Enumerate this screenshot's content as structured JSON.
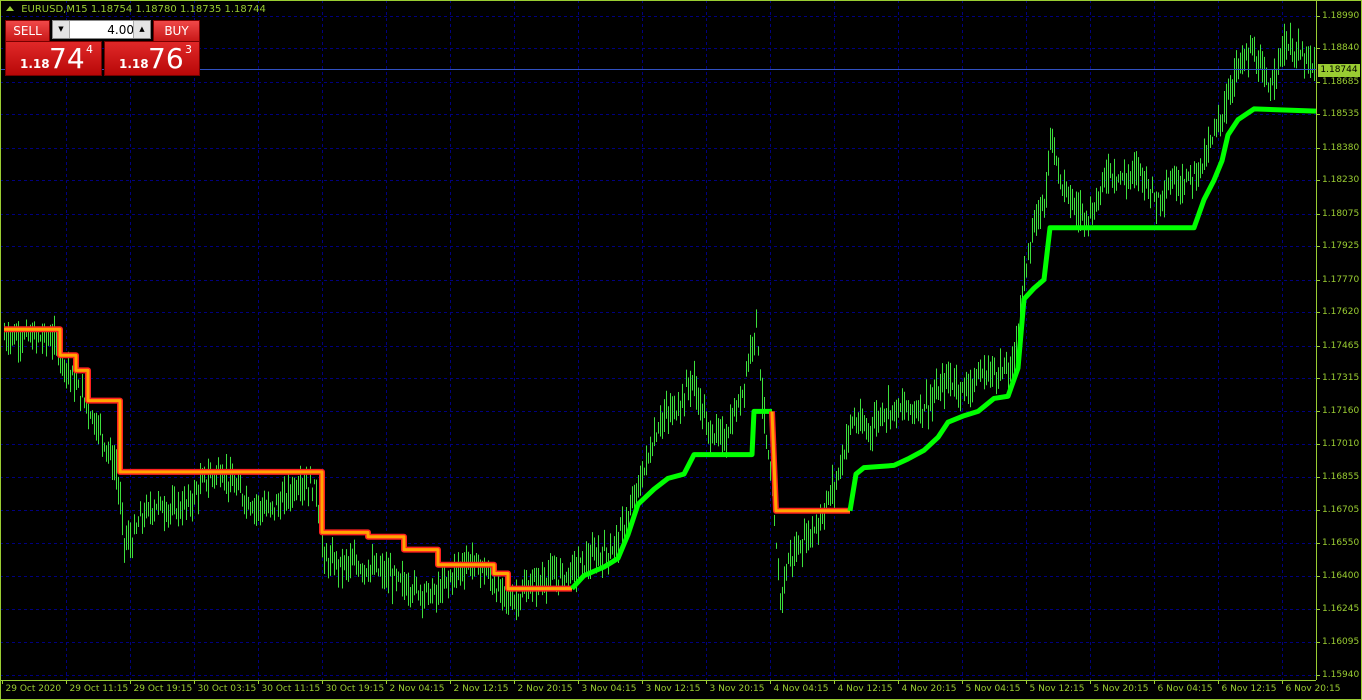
{
  "header": {
    "symbol": "EURUSD,M15",
    "open": "1.18754",
    "high": "1.18780",
    "low": "1.18735",
    "close": "1.18744"
  },
  "trade_panel": {
    "sell_label": "SELL",
    "buy_label": "BUY",
    "lot_value": "4.00",
    "sell_price": {
      "prefix": "1.18",
      "big": "74",
      "sup": "4"
    },
    "buy_price": {
      "prefix": "1.18",
      "big": "76",
      "sup": "3"
    },
    "lot_down_icon": "triangle-down",
    "lot_up_icon": "triangle-up"
  },
  "current_price": "1.18744",
  "colors": {
    "background": "#000000",
    "axis": "#9acd32",
    "grid": "#000080",
    "bars": "#3ce03c",
    "trend_up": "#00ff00",
    "trend_down_outer": "#ff2020",
    "trend_down_inner": "#ffa500",
    "bid_line": "#3050c0"
  },
  "chart_data": {
    "type": "bar",
    "symbol": "EURUSD",
    "timeframe": "M15",
    "ylim": [
      1.1594,
      1.1899
    ],
    "y_ticks": [
      "1.18990",
      "1.18840",
      "1.18685",
      "1.18535",
      "1.18380",
      "1.18230",
      "1.18075",
      "1.17925",
      "1.17770",
      "1.17620",
      "1.17465",
      "1.17315",
      "1.17160",
      "1.17010",
      "1.16855",
      "1.16705",
      "1.16550",
      "1.16400",
      "1.16245",
      "1.16095",
      "1.15940"
    ],
    "x_ticks": [
      "29 Oct 2020",
      "29 Oct 11:15",
      "29 Oct 19:15",
      "30 Oct 03:15",
      "30 Oct 11:15",
      "30 Oct 19:15",
      "2 Nov 04:15",
      "2 Nov 12:15",
      "2 Nov 20:15",
      "3 Nov 04:15",
      "3 Nov 12:15",
      "3 Nov 20:15",
      "4 Nov 04:15",
      "4 Nov 12:15",
      "4 Nov 20:15",
      "5 Nov 04:15",
      "5 Nov 12:15",
      "5 Nov 20:15",
      "6 Nov 04:15",
      "6 Nov 12:15",
      "6 Nov 20:15"
    ],
    "grid": true,
    "price_path": [
      [
        0,
        1.1751
      ],
      [
        8,
        1.1751
      ],
      [
        16,
        1.175
      ],
      [
        24,
        1.175
      ],
      [
        32,
        1.1735
      ],
      [
        40,
        1.1721
      ],
      [
        48,
        1.1707
      ],
      [
        56,
        1.1689
      ],
      [
        60,
        1.1656
      ],
      [
        64,
        1.1656
      ],
      [
        68,
        1.1666
      ],
      [
        76,
        1.1673
      ],
      [
        84,
        1.167
      ],
      [
        92,
        1.1673
      ],
      [
        100,
        1.1684
      ],
      [
        108,
        1.1689
      ],
      [
        116,
        1.168
      ],
      [
        124,
        1.1673
      ],
      [
        132,
        1.167
      ],
      [
        140,
        1.1675
      ],
      [
        148,
        1.1684
      ],
      [
        156,
        1.168
      ],
      [
        160,
        1.1647
      ],
      [
        168,
        1.1645
      ],
      [
        176,
        1.1645
      ],
      [
        184,
        1.1643
      ],
      [
        192,
        1.164
      ],
      [
        200,
        1.1636
      ],
      [
        208,
        1.1633
      ],
      [
        216,
        1.1631
      ],
      [
        224,
        1.164
      ],
      [
        232,
        1.1647
      ],
      [
        240,
        1.1643
      ],
      [
        248,
        1.1631
      ],
      [
        256,
        1.1629
      ],
      [
        264,
        1.1636
      ],
      [
        272,
        1.1639
      ],
      [
        280,
        1.164
      ],
      [
        288,
        1.1645
      ],
      [
        296,
        1.1649
      ],
      [
        304,
        1.1652
      ],
      [
        312,
        1.1666
      ],
      [
        320,
        1.1689
      ],
      [
        328,
        1.1712
      ],
      [
        336,
        1.1717
      ],
      [
        344,
        1.1731
      ],
      [
        352,
        1.1707
      ],
      [
        360,
        1.1703
      ],
      [
        368,
        1.1721
      ],
      [
        376,
        1.1758
      ],
      [
        380,
        1.1712
      ],
      [
        384,
        1.1675
      ],
      [
        388,
        1.1629
      ],
      [
        392,
        1.1647
      ],
      [
        400,
        1.1656
      ],
      [
        408,
        1.1666
      ],
      [
        416,
        1.1684
      ],
      [
        424,
        1.1712
      ],
      [
        432,
        1.1707
      ],
      [
        440,
        1.1717
      ],
      [
        448,
        1.1717
      ],
      [
        456,
        1.1717
      ],
      [
        464,
        1.1721
      ],
      [
        472,
        1.1731
      ],
      [
        480,
        1.1726
      ],
      [
        488,
        1.1733
      ],
      [
        496,
        1.1735
      ],
      [
        504,
        1.1735
      ],
      [
        512,
        1.1791
      ],
      [
        520,
        1.1814
      ],
      [
        524,
        1.1846
      ],
      [
        528,
        1.1823
      ],
      [
        536,
        1.1809
      ],
      [
        544,
        1.1807
      ],
      [
        552,
        1.1828
      ],
      [
        560,
        1.1823
      ],
      [
        568,
        1.1828
      ],
      [
        576,
        1.1814
      ],
      [
        584,
        1.1823
      ],
      [
        592,
        1.1823
      ],
      [
        600,
        1.1832
      ],
      [
        608,
        1.1851
      ],
      [
        616,
        1.1874
      ],
      [
        624,
        1.1883
      ],
      [
        632,
        1.1865
      ],
      [
        640,
        1.1886
      ],
      [
        648,
        1.1881
      ],
      [
        655,
        1.1874
      ]
    ],
    "trend_line": [
      {
        "trend": "down",
        "points": [
          [
            0,
            1.1754
          ],
          [
            28,
            1.1754
          ],
          [
            28,
            1.1742
          ],
          [
            36,
            1.1742
          ],
          [
            36,
            1.1735
          ],
          [
            42,
            1.1735
          ],
          [
            42,
            1.1721
          ],
          [
            58,
            1.1721
          ],
          [
            58,
            1.1688
          ],
          [
            159,
            1.1688
          ],
          [
            159,
            1.166
          ],
          [
            182,
            1.166
          ],
          [
            182,
            1.1658
          ],
          [
            200,
            1.1658
          ],
          [
            200,
            1.1652
          ],
          [
            217,
            1.1652
          ],
          [
            217,
            1.1645
          ],
          [
            245,
            1.1645
          ],
          [
            245,
            1.1641
          ],
          [
            252,
            1.1641
          ],
          [
            252,
            1.1634
          ],
          [
            284,
            1.1634
          ]
        ]
      },
      {
        "trend": "up",
        "points": [
          [
            284,
            1.1634
          ],
          [
            290,
            1.164
          ],
          [
            300,
            1.1644
          ],
          [
            307,
            1.1648
          ],
          [
            312,
            1.1659
          ],
          [
            317,
            1.1673
          ],
          [
            325,
            1.168
          ],
          [
            332,
            1.1685
          ],
          [
            340,
            1.1687
          ],
          [
            345,
            1.1696
          ],
          [
            374,
            1.1696
          ],
          [
            375,
            1.1716
          ],
          [
            384,
            1.1716
          ]
        ]
      },
      {
        "trend": "down",
        "points": [
          [
            384,
            1.1716
          ],
          [
            386,
            1.167
          ],
          [
            423,
            1.167
          ]
        ]
      },
      {
        "trend": "up",
        "points": [
          [
            423,
            1.167
          ],
          [
            426,
            1.1687
          ],
          [
            430,
            1.169
          ],
          [
            445,
            1.1691
          ],
          [
            452,
            1.1694
          ],
          [
            460,
            1.1698
          ],
          [
            467,
            1.1704
          ],
          [
            472,
            1.1711
          ],
          [
            480,
            1.1714
          ],
          [
            487,
            1.1716
          ],
          [
            495,
            1.1722
          ],
          [
            502,
            1.1723
          ],
          [
            507,
            1.1736
          ],
          [
            510,
            1.1768
          ],
          [
            515,
            1.1773
          ],
          [
            520,
            1.1777
          ],
          [
            523,
            1.1801
          ],
          [
            595,
            1.1801
          ],
          [
            600,
            1.1814
          ],
          [
            605,
            1.1823
          ],
          [
            609,
            1.1832
          ],
          [
            612,
            1.1844
          ],
          [
            617,
            1.1851
          ],
          [
            625,
            1.1856
          ],
          [
            656,
            1.1855
          ]
        ]
      }
    ]
  }
}
